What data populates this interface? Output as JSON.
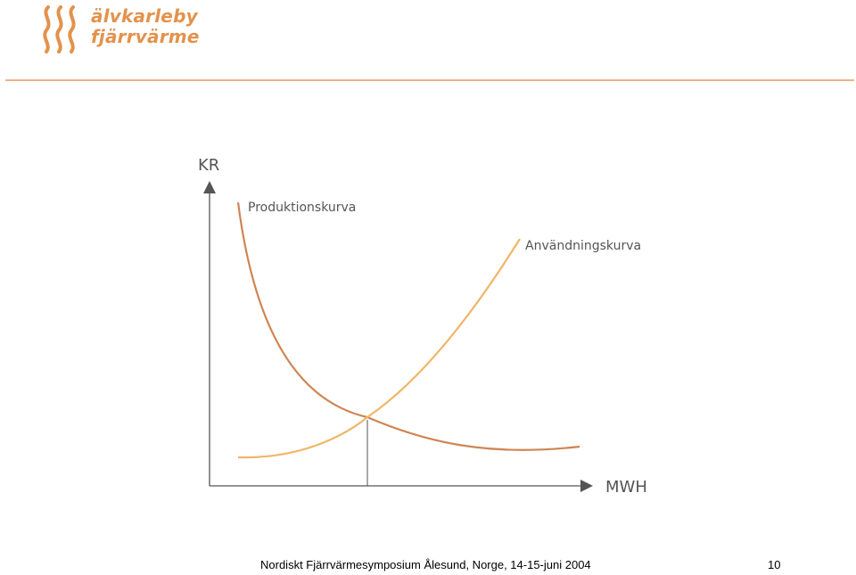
{
  "logo": {
    "line1": "älvkarleby",
    "line2": "fjärrvärme",
    "icon": "flame-waves-icon",
    "color": "#e3924b"
  },
  "diagram": {
    "y_axis_label": "KR",
    "x_axis_label": "MWH",
    "curve_production_label": "Produktionskurva",
    "curve_usage_label": "Användningskurva",
    "production_color": "#cf8553",
    "usage_color": "#f0b668",
    "axis_color": "#555555"
  },
  "footer": {
    "text": "Nordiskt Fjärrvärmesymposium Ålesund, Norge, 14-15-juni 2004",
    "slide_number": "10"
  }
}
